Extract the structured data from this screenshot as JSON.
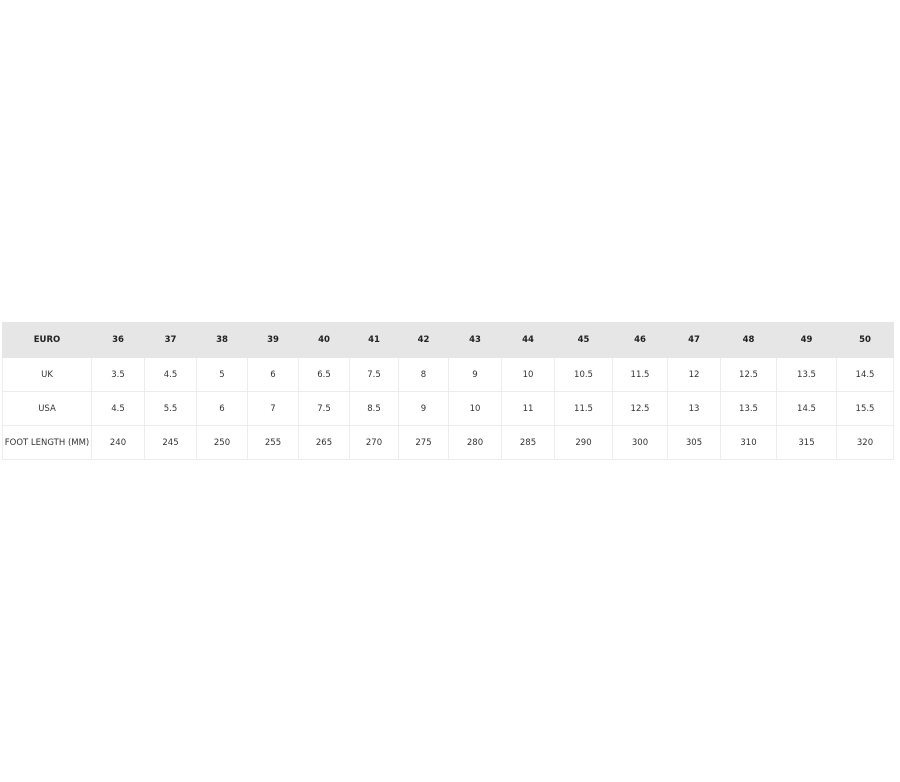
{
  "size_chart": {
    "header": [
      "EURO",
      "36",
      "37",
      "38",
      "39",
      "40",
      "41",
      "42",
      "43",
      "44",
      "45",
      "46",
      "47",
      "48",
      "49",
      "50"
    ],
    "rows": [
      [
        "UK",
        "3.5",
        "4.5",
        "5",
        "6",
        "6.5",
        "7.5",
        "8",
        "9",
        "10",
        "10.5",
        "11.5",
        "12",
        "12.5",
        "13.5",
        "14.5"
      ],
      [
        "USA",
        "4.5",
        "5.5",
        "6",
        "7",
        "7.5",
        "8.5",
        "9",
        "10",
        "11",
        "11.5",
        "12.5",
        "13",
        "13.5",
        "14.5",
        "15.5"
      ],
      [
        "FOOT LENGTH (MM)",
        "240",
        "245",
        "250",
        "255",
        "265",
        "270",
        "275",
        "280",
        "285",
        "290",
        "300",
        "305",
        "310",
        "315",
        "320"
      ]
    ]
  }
}
